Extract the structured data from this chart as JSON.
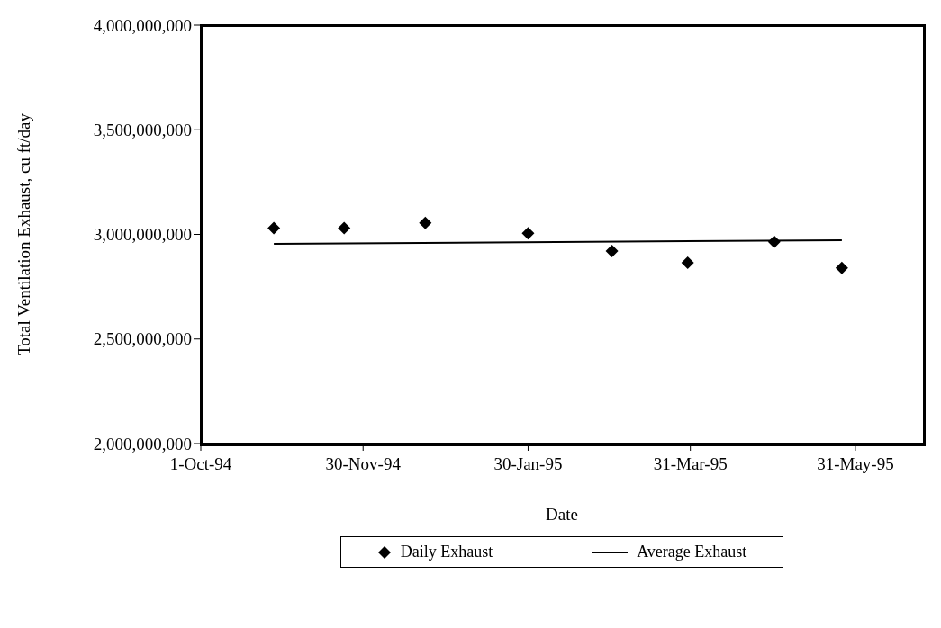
{
  "chart_data": {
    "type": "scatter",
    "xlabel": "Date",
    "ylabel": "Total Ventilation Exhaust, cu ft/day",
    "xlim": [
      "1994-10-01",
      "1995-06-25"
    ],
    "xticks": [
      {
        "value": "1994-10-01",
        "label": "1-Oct-94"
      },
      {
        "value": "1994-11-30",
        "label": "30-Nov-94"
      },
      {
        "value": "1995-01-30",
        "label": "30-Jan-95"
      },
      {
        "value": "1995-03-31",
        "label": "31-Mar-95"
      },
      {
        "value": "1995-05-31",
        "label": "31-May-95"
      }
    ],
    "ylim": [
      2000000000,
      4000000000
    ],
    "yticks": [
      {
        "value": 2000000000,
        "label": "2,000,000,000"
      },
      {
        "value": 2500000000,
        "label": "2,500,000,000"
      },
      {
        "value": 3000000000,
        "label": "3,000,000,000"
      },
      {
        "value": 3500000000,
        "label": "3,500,000,000"
      },
      {
        "value": 4000000000,
        "label": "4,000,000,000"
      }
    ],
    "grid": false,
    "legend": "bottom",
    "series": [
      {
        "name": "Daily Exhaust",
        "type": "scatter",
        "marker": "diamond",
        "color": "#000000",
        "x": [
          "1994-10-28",
          "1994-11-23",
          "1994-12-23",
          "1995-01-30",
          "1995-03-02",
          "1995-03-30",
          "1995-05-01",
          "1995-05-26"
        ],
        "values": [
          3030000000,
          3030000000,
          3055000000,
          3005000000,
          2920000000,
          2865000000,
          2965000000,
          2840000000
        ]
      },
      {
        "name": "Average Exhaust",
        "type": "line",
        "line_style": "solid",
        "marker": "none",
        "color": "#000000",
        "x": [
          "1994-10-28",
          "1995-05-26"
        ],
        "values": [
          2955000000,
          2972000000
        ]
      }
    ]
  }
}
